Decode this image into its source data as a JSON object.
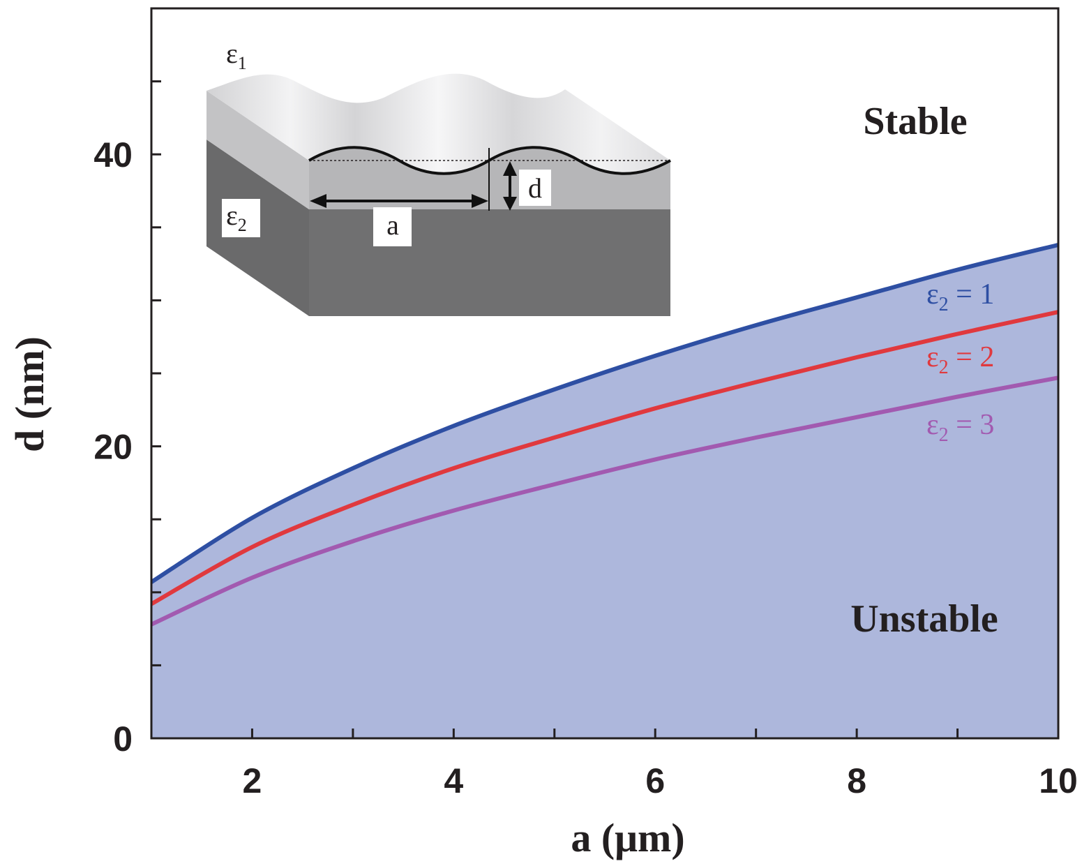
{
  "chart_data": {
    "type": "area",
    "xlabel": "a (μm)",
    "ylabel": "d (nm)",
    "xlim": [
      1,
      10
    ],
    "ylim": [
      0,
      50
    ],
    "x_ticks": [
      "2",
      "4",
      "6",
      "8",
      "10"
    ],
    "y_ticks": [
      "0",
      "20",
      "40"
    ],
    "x": [
      1,
      2,
      3,
      4,
      5,
      6,
      7,
      8,
      9,
      10
    ],
    "series": [
      {
        "name": "ε2 = 1",
        "label_main": "ε",
        "label_sub": "2",
        "label_rest": " = 1",
        "color": "#2e4fa3",
        "values": [
          10.7,
          15.1,
          18.5,
          21.4,
          23.9,
          26.2,
          28.3,
          30.2,
          32.1,
          33.8
        ]
      },
      {
        "name": "ε2 = 2",
        "label_main": "ε",
        "label_sub": "2",
        "label_rest": " = 2",
        "color": "#e0393e",
        "values": [
          9.2,
          13.1,
          16.0,
          18.5,
          20.6,
          22.6,
          24.4,
          26.1,
          27.7,
          29.2
        ]
      },
      {
        "name": "ε2 = 3",
        "label_main": "ε",
        "label_sub": "2",
        "label_rest": " = 3",
        "color": "#a25ab0",
        "values": [
          7.8,
          11.0,
          13.5,
          15.6,
          17.4,
          19.1,
          20.6,
          22.0,
          23.4,
          24.7
        ]
      }
    ],
    "fill_color": "#adb7dc",
    "regions": {
      "stable": "Stable",
      "unstable": "Unstable"
    }
  },
  "inset": {
    "eps1_main": "ε",
    "eps1_sub": "1",
    "eps2_main": "ε",
    "eps2_sub": "2",
    "period_label": "a",
    "amplitude_label": "d"
  }
}
